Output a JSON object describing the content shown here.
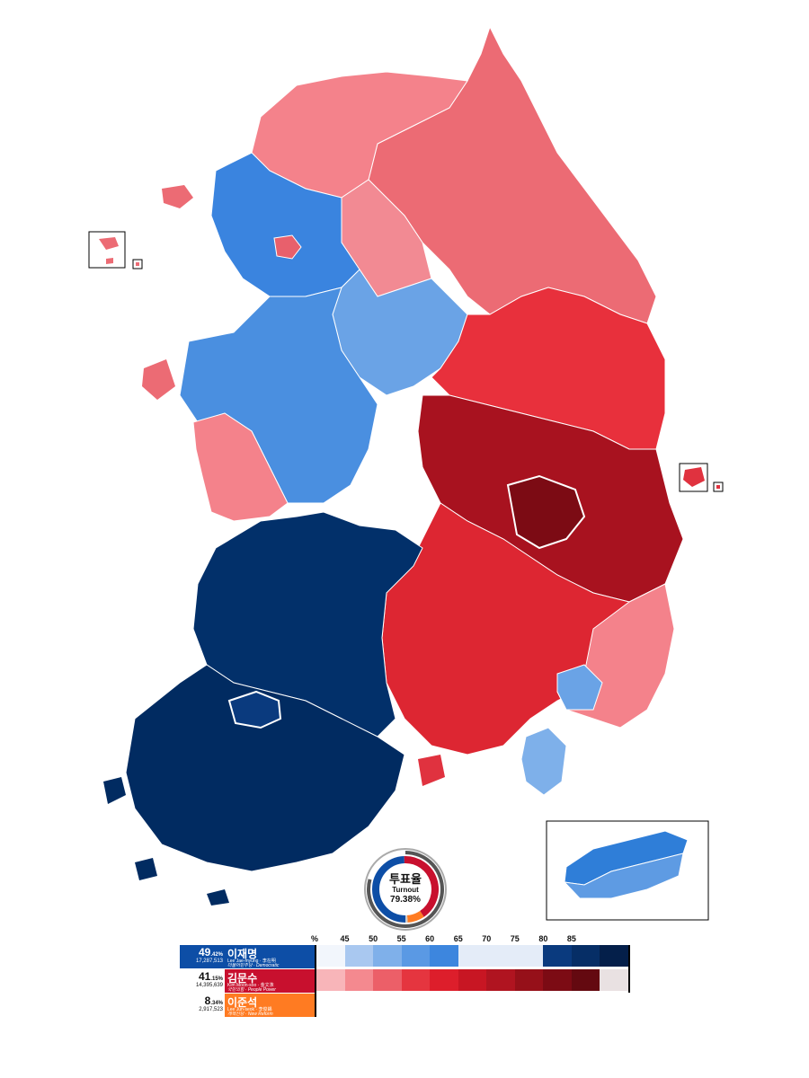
{
  "map": {
    "title": "",
    "regions": [
      {
        "id": "gangwon",
        "color": "#e8606c"
      },
      {
        "id": "gyeonggi-north",
        "color": "#f4828b"
      },
      {
        "id": "seoul-incheon",
        "color": "#3a84df"
      },
      {
        "id": "chungcheong",
        "color": "#5e9be3"
      },
      {
        "id": "gyeongbuk",
        "color": "#a8121f"
      },
      {
        "id": "daegu",
        "color": "#7c0b14"
      },
      {
        "id": "gyeongnam",
        "color": "#e0323f"
      },
      {
        "id": "busan-ulsan",
        "color": "#f4828b"
      },
      {
        "id": "jeolla",
        "color": "#02306a"
      },
      {
        "id": "jeonbuk-west",
        "color": "#012b61"
      },
      {
        "id": "jeju",
        "color": "#2f7ed8"
      }
    ]
  },
  "turnout": {
    "title_ko": "투표율",
    "title_en": "Turnout",
    "value": "79.38%",
    "shares": [
      {
        "name": "democratic",
        "value": 49.42,
        "color": "#0d4ea6"
      },
      {
        "name": "people_power",
        "value": 41.15,
        "color": "#c8102e"
      },
      {
        "name": "new_reform",
        "value": 8.34,
        "color": "#ff7b22"
      },
      {
        "name": "other",
        "value": 1.09,
        "color": "#cccccc"
      }
    ],
    "turnout_ring_fraction": 0.7938
  },
  "candidates": [
    {
      "pct_main": "49",
      "pct_decimal": ".42%",
      "votes": "17,287,513",
      "name_ko": "이재명",
      "name_en": "Lee Jae-myung · 李在明",
      "party": "더불어민주당 · Democratic",
      "color": "#0d4ea6"
    },
    {
      "pct_main": "41",
      "pct_decimal": ".15%",
      "votes": "14,395,639",
      "name_ko": "김문수",
      "name_en": "Kim Moon-soo · 金文洙",
      "party": "국민의힘 · People Power",
      "color": "#c8102e"
    },
    {
      "pct_main": "8",
      "pct_decimal": ".34%",
      "votes": "2,917,523",
      "name_ko": "이준석",
      "name_en": "Lee Jun-seok · 李俊錫",
      "party": "개혁신당 · New Reform",
      "color": "#ff7b22"
    }
  ],
  "scale": {
    "unit_label": "%",
    "ticks": [
      "45",
      "50",
      "55",
      "60",
      "65",
      "70",
      "75",
      "80",
      "85"
    ],
    "blue_colors": [
      "#f2f6fc",
      "#a9c8f0",
      "#7fb0ea",
      "#5a99e4",
      "#3d86de",
      "#e4ecf8",
      "#e4ecf8",
      "#e4ecf8",
      "#0a3a7e",
      "#062e66",
      "#041f4a"
    ],
    "red_colors": [
      "#f8b5b9",
      "#f4898f",
      "#ec5f68",
      "#e5353f",
      "#dd1e2b",
      "#c81623",
      "#b01420",
      "#961019",
      "#7c0b14",
      "#640910",
      "#e9e1e2"
    ]
  }
}
